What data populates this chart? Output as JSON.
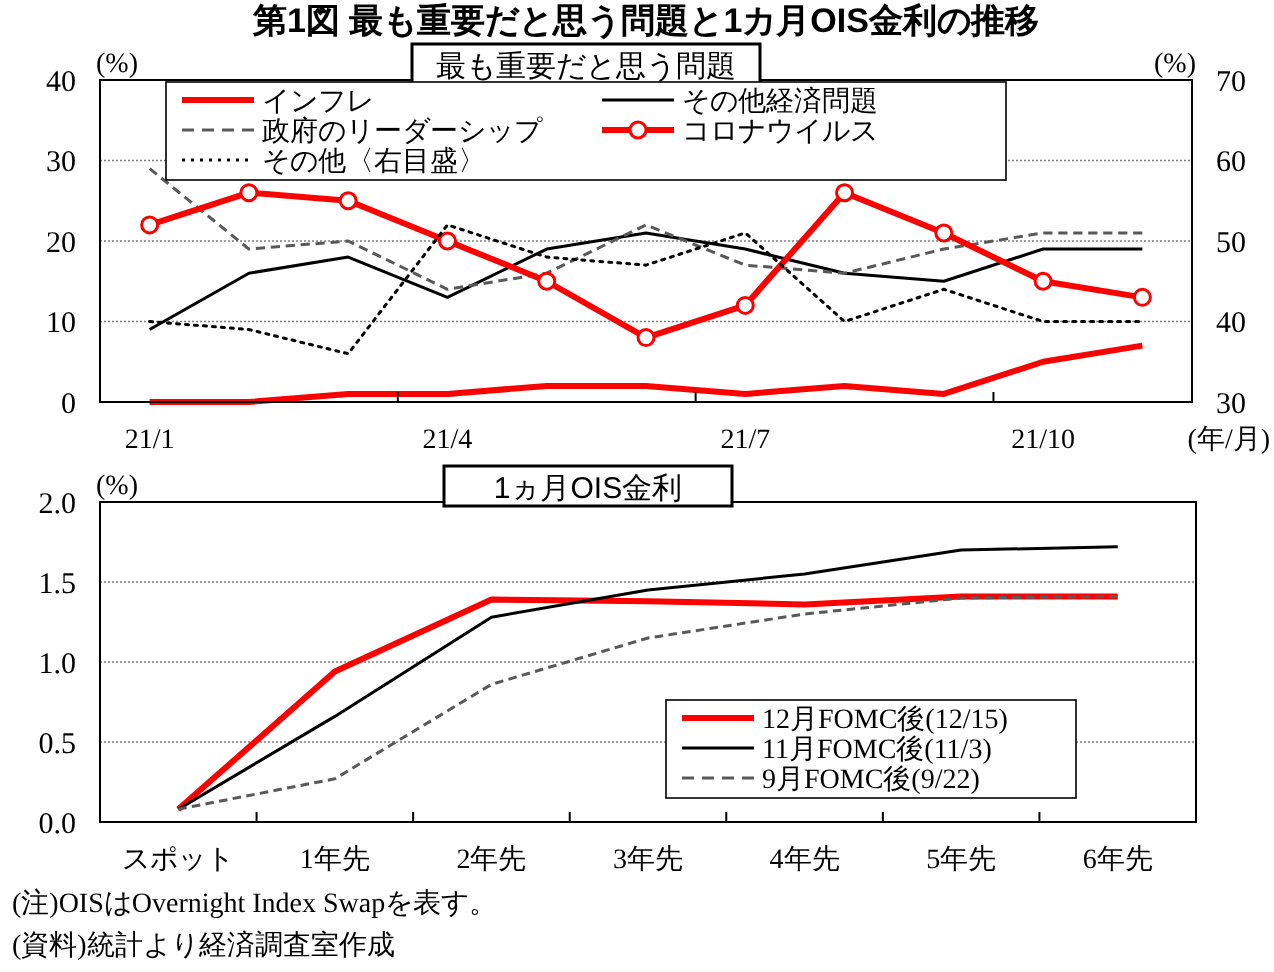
{
  "chart_data": [
    {
      "type": "line",
      "title": "第1図 最も重要だと思う問題と1カ月OIS金利の推移",
      "subtitle": "最も重要だと思う問題",
      "ylabel": "(%)",
      "y2label": "(%)",
      "xlabel": "(年/月)",
      "categories": [
        "21/1",
        null,
        null,
        "21/4",
        null,
        null,
        "21/7",
        null,
        null,
        "21/10",
        null
      ],
      "ylim": [
        0,
        40
      ],
      "yticks": [
        0,
        10,
        20,
        30,
        40
      ],
      "y2lim": [
        30,
        70
      ],
      "y2ticks": [
        30,
        40,
        50,
        60,
        70
      ],
      "grid": "y",
      "legend": "top",
      "series": [
        {
          "name": "インフレ",
          "color": "#ff0000",
          "line_style": "solid",
          "marker": "none",
          "values": [
            0,
            0,
            1,
            1,
            2,
            2,
            1,
            2,
            1,
            5,
            7
          ]
        },
        {
          "name": "その他経済問題",
          "color": "#000000",
          "line_style": "solid",
          "marker": "none",
          "values": [
            9,
            16,
            18,
            13,
            19,
            21,
            19,
            16,
            15,
            19,
            19
          ]
        },
        {
          "name": "政府のリーダーシップ",
          "color": "#595959",
          "line_style": "dashed",
          "marker": "none",
          "values": [
            29,
            19,
            20,
            14,
            16,
            22,
            17,
            16,
            19,
            21,
            21
          ]
        },
        {
          "name": "コロナウイルス",
          "color": "#ff0000",
          "line_style": "solid",
          "marker": "circle",
          "values": [
            22,
            26,
            25,
            20,
            15,
            8,
            12,
            26,
            21,
            15,
            13
          ]
        },
        {
          "name": "その他〈右目盛〉",
          "color": "#000000",
          "line_style": "dotted",
          "marker": "none",
          "axis": "y2",
          "values": [
            40,
            39,
            36,
            52,
            48,
            47,
            51,
            40,
            44,
            40,
            40
          ]
        }
      ]
    },
    {
      "type": "line",
      "title": "1ヵ月OIS金利",
      "ylabel": "(%)",
      "categories": [
        "スポット",
        "1年先",
        "2年先",
        "3年先",
        "4年先",
        "5年先",
        "6年先"
      ],
      "ylim": [
        0,
        2
      ],
      "yticks": [
        {
          "value": 0,
          "label": "0.0"
        },
        {
          "value": 0.5,
          "label": "0.5"
        },
        {
          "value": 1,
          "label": "1.0"
        },
        {
          "value": 1.5,
          "label": "1.5"
        },
        {
          "value": 2,
          "label": "2.0"
        }
      ],
      "grid": "y",
      "legend": "right",
      "annotations": [
        "(注)OISはOvernight Index Swapを表す。",
        "(資料)統計より経済調査室作成"
      ],
      "series": [
        {
          "name": "12月FOMC後(12/15)",
          "color": "#ff0000",
          "line_style": "solid",
          "marker": "none",
          "values": [
            0.08,
            0.94,
            1.39,
            1.38,
            1.36,
            1.41,
            1.41
          ]
        },
        {
          "name": "11月FOMC後(11/3)",
          "color": "#000000",
          "line_style": "solid",
          "marker": "none",
          "values": [
            0.08,
            0.66,
            1.28,
            1.45,
            1.55,
            1.7,
            1.72
          ]
        },
        {
          "name": "9月FOMC後(9/22)",
          "color": "#595959",
          "line_style": "dashed",
          "marker": "none",
          "values": [
            0.08,
            0.27,
            0.86,
            1.15,
            1.3,
            1.4,
            1.41
          ]
        }
      ]
    }
  ]
}
